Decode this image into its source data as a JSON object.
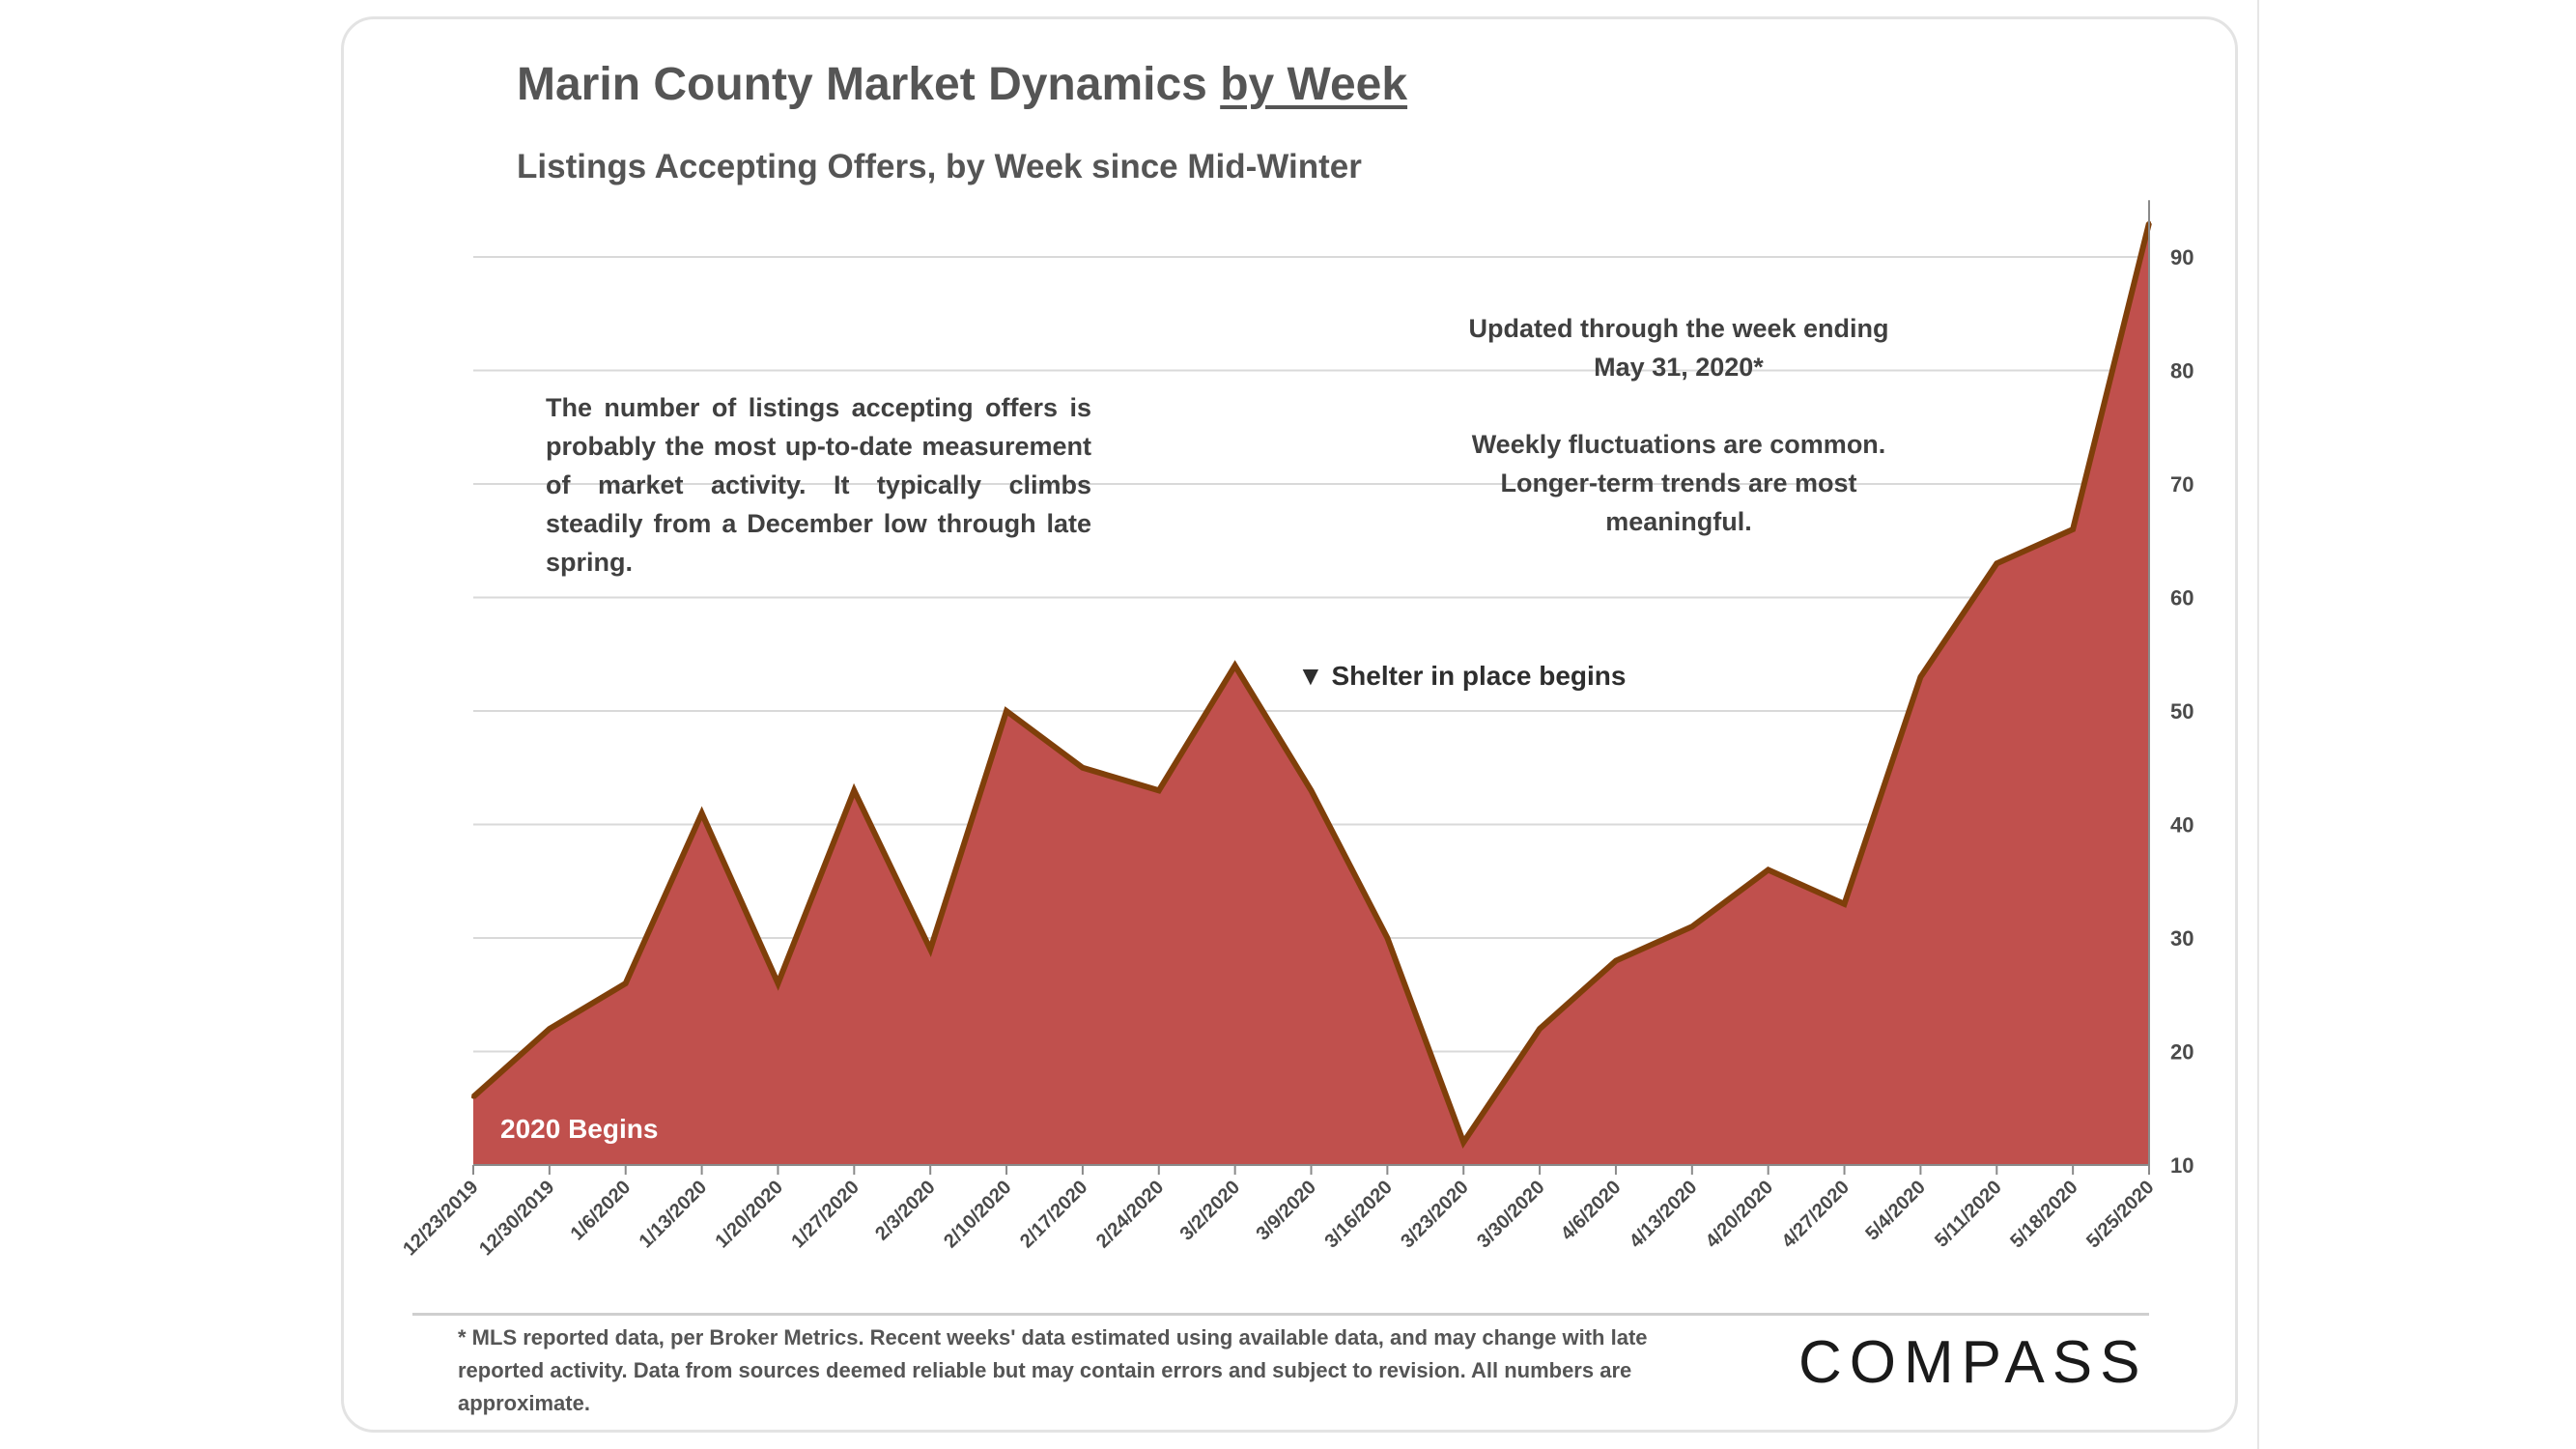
{
  "page": {
    "title_main": "Marin County Market Dynamics ",
    "title_underlined": "by Week",
    "subtitle": "Listings  Accepting  Offers,  by Week since Mid-Winter",
    "note_left": "The number of listings accepting offers is probably the most up-to-date measurement of market activity. It typically climbs steadily from a December low through late spring.",
    "note_right_1": "Updated through the week ending May 31, 2020*",
    "note_right_2": "Weekly fluctuations are common. Longer-term trends are most meaningful.",
    "footnote": "* MLS reported data, per Broker Metrics. Recent weeks' data estimated using available data, and may change with late reported activity. Data from sources deemed reliable but may contain errors and subject to revision. All numbers are approximate.",
    "logo": "COMPASS"
  },
  "chart_data": {
    "type": "area",
    "title": "Marin County Market Dynamics by Week",
    "subtitle": "Listings Accepting Offers, by Week since Mid-Winter",
    "x": [
      "12/23/2019",
      "12/30/2019",
      "1/6/2020",
      "1/13/2020",
      "1/20/2020",
      "1/27/2020",
      "2/3/2020",
      "2/10/2020",
      "2/17/2020",
      "2/24/2020",
      "3/2/2020",
      "3/9/2020",
      "3/16/2020",
      "3/23/2020",
      "3/30/2020",
      "4/6/2020",
      "4/13/2020",
      "4/20/2020",
      "4/27/2020",
      "5/4/2020",
      "5/11/2020",
      "5/18/2020",
      "5/25/2020"
    ],
    "values": [
      16,
      22,
      26,
      41,
      26,
      43,
      29,
      50,
      45,
      43,
      54,
      43,
      30,
      12,
      22,
      28,
      31,
      36,
      33,
      53,
      63,
      66,
      93
    ],
    "ylim": [
      10,
      95
    ],
    "yticks": [
      10,
      20,
      30,
      40,
      50,
      60,
      70,
      80,
      90
    ],
    "y_axis_side": "right",
    "grid": true,
    "fill_color": "#c0504d",
    "line_color": "#7f3f0a",
    "annotations": [
      {
        "label": "2020 Begins"
      },
      {
        "label": "▼ Shelter in place begins"
      }
    ]
  }
}
